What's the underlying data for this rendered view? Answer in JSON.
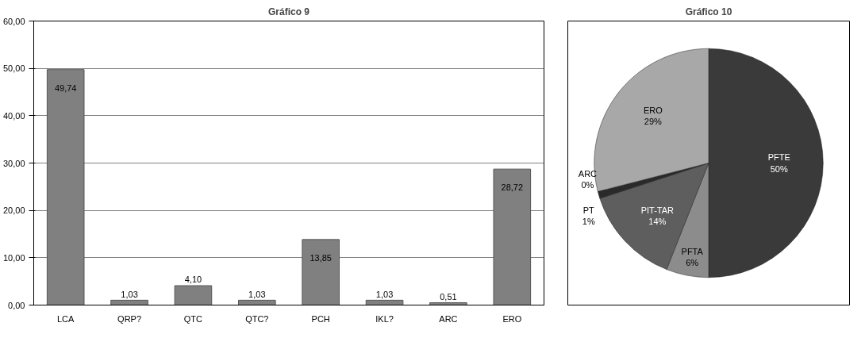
{
  "chart_data": [
    {
      "type": "bar",
      "title": "Gráfico 9",
      "categories": [
        "LCA",
        "QRP?",
        "QTC",
        "QTC?",
        "PCH",
        "IKL?",
        "ARC",
        "ERO"
      ],
      "values": [
        49.74,
        1.03,
        4.1,
        1.03,
        13.85,
        1.03,
        0.51,
        28.72
      ],
      "value_labels": [
        "49,74",
        "1,03",
        "4,10",
        "1,03",
        "13,85",
        "1,03",
        "0,51",
        "28,72"
      ],
      "color": "#808080",
      "ylim": [
        0,
        60
      ],
      "yticks": [
        {
          "value": 0,
          "label": "0,00"
        },
        {
          "value": 10,
          "label": "10,00"
        },
        {
          "value": 20,
          "label": "20,00"
        },
        {
          "value": 30,
          "label": "30,00"
        },
        {
          "value": 40,
          "label": "40,00"
        },
        {
          "value": 50,
          "label": "50,00"
        },
        {
          "value": 60,
          "label": "60,00"
        }
      ],
      "grid": "y"
    },
    {
      "type": "pie",
      "title": "Gráfico 10",
      "categories": [
        "PFTE",
        "PFTA",
        "PIT-TAR",
        "PT",
        "ARC",
        "ERO"
      ],
      "values": [
        50,
        6,
        14,
        1,
        0,
        29
      ],
      "value_labels": [
        "50%",
        "6%",
        "14%",
        "1%",
        "0%",
        "29%"
      ],
      "colors": [
        "#3a3a3a",
        "#8c8c8c",
        "#5e5e5e",
        "#2a2a2a",
        "#4a4a4a",
        "#a8a8a8"
      ]
    }
  ]
}
